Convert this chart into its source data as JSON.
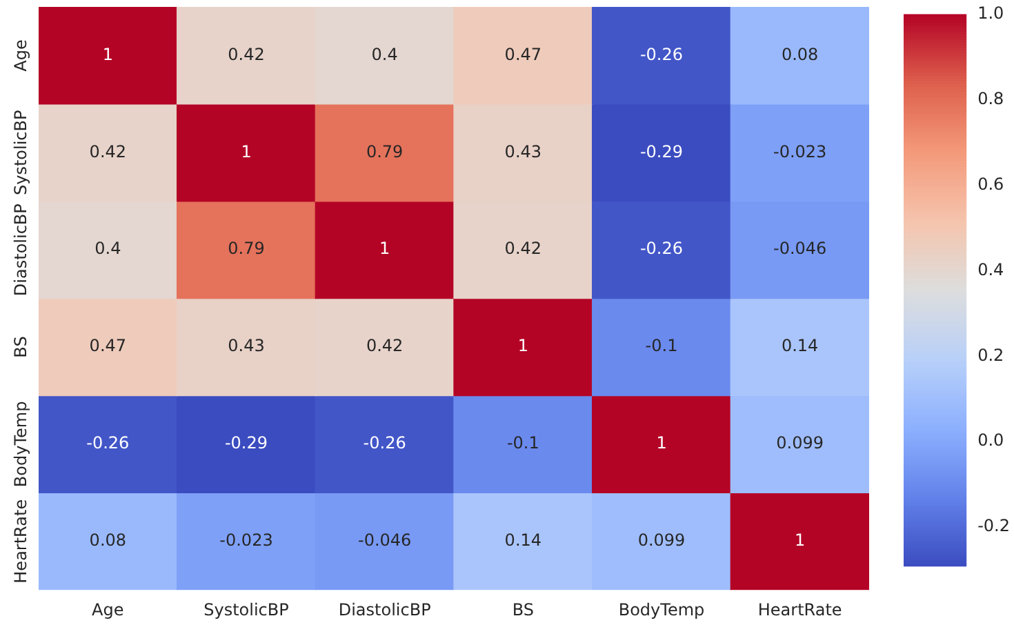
{
  "chart_data": {
    "type": "heatmap",
    "categories": [
      "Age",
      "SystolicBP",
      "DiastolicBP",
      "BS",
      "BodyTemp",
      "HeartRate"
    ],
    "y_categories": [
      "Age",
      "SystolicBP",
      "DiastolicBP",
      "BS",
      "BodyTemp",
      "HeartRate"
    ],
    "cells": [
      [
        1,
        0.42,
        0.4,
        0.47,
        -0.26,
        0.08
      ],
      [
        0.42,
        1,
        0.79,
        0.43,
        -0.29,
        -0.023
      ],
      [
        0.4,
        0.79,
        1,
        0.42,
        -0.26,
        -0.046
      ],
      [
        0.47,
        0.43,
        0.42,
        1,
        -0.1,
        0.14
      ],
      [
        -0.26,
        -0.29,
        -0.26,
        -0.1,
        1,
        0.099
      ],
      [
        0.08,
        -0.023,
        -0.046,
        0.14,
        0.099,
        1
      ]
    ],
    "clim": [
      -0.29,
      1.0
    ],
    "cticks": [
      -0.2,
      {
        "value": 0,
        "label": "0.0"
      },
      0.2,
      0.4,
      0.6,
      0.8,
      {
        "value": 1,
        "label": "1.0"
      }
    ],
    "data_labels": true,
    "grid": false
  }
}
